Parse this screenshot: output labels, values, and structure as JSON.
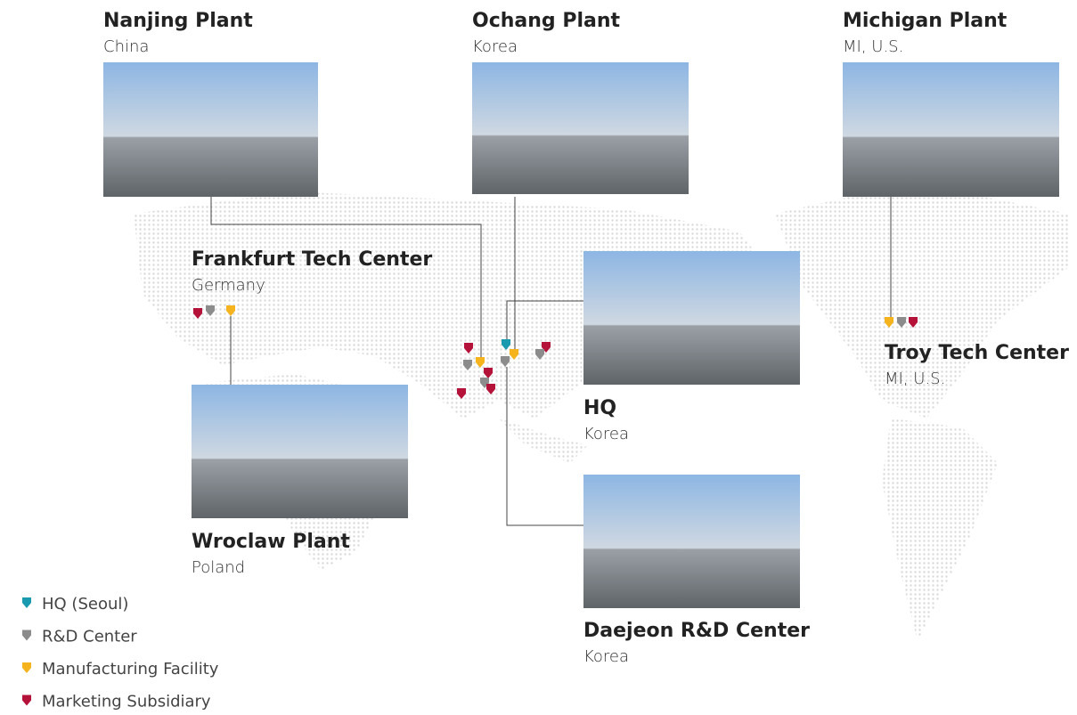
{
  "sites": [
    {
      "name": "Nanjing Plant",
      "location": "China"
    },
    {
      "name": "Ochang Plant",
      "location": "Korea"
    },
    {
      "name": "Michigan Plant",
      "location": "MI, U.S."
    },
    {
      "name": "Frankfurt Tech Center",
      "location": "Germany"
    },
    {
      "name": "Wroclaw Plant",
      "location": "Poland"
    },
    {
      "name": "HQ",
      "location": "Korea"
    },
    {
      "name": "Troy Tech Center",
      "location": "MI, U.S."
    },
    {
      "name": "Daejeon R&D Center",
      "location": "Korea"
    }
  ],
  "legend": [
    {
      "label": "HQ (Seoul)",
      "color": "#1a9aae"
    },
    {
      "label": "R&D Center",
      "color": "#8c8c8c"
    },
    {
      "label": "Manufacturing Facility",
      "color": "#f5b41e"
    },
    {
      "label": "Marketing Subsidiary",
      "color": "#b5123a"
    }
  ]
}
